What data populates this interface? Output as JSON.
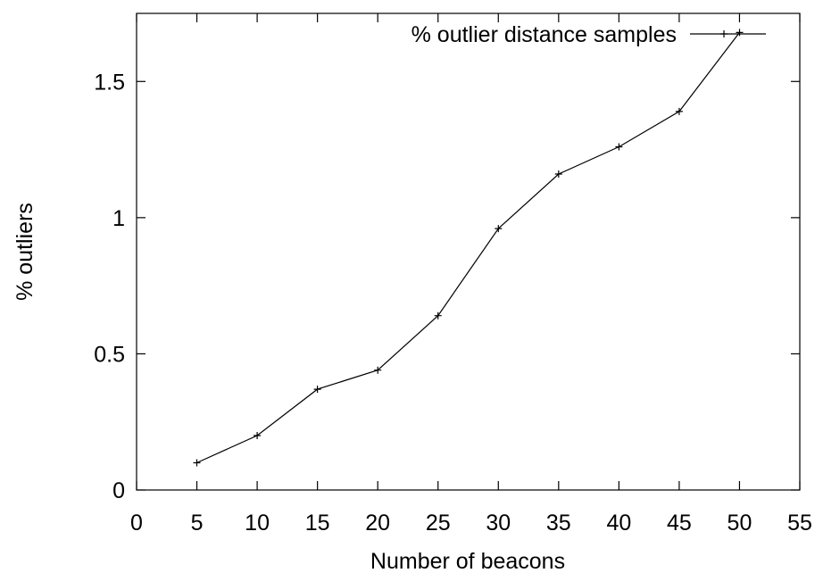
{
  "chart_data": {
    "type": "line",
    "title": "",
    "xlabel": "Number of beacons",
    "ylabel": "% outliers",
    "xlim": [
      0,
      55
    ],
    "ylim": [
      0,
      1.75
    ],
    "xticks": [
      0,
      5,
      10,
      15,
      20,
      25,
      30,
      35,
      40,
      45,
      50,
      55
    ],
    "xtick_labels": [
      "0",
      "5",
      "10",
      "15",
      "20",
      "25",
      "30",
      "35",
      "40",
      "45",
      "50",
      "55"
    ],
    "yticks": [
      0,
      0.5,
      1,
      1.5
    ],
    "ytick_labels": [
      "0",
      "0.5",
      "1",
      "1.5"
    ],
    "grid": false,
    "legend_position": "top-right",
    "series": [
      {
        "name": "% outlier distance samples",
        "marker": "plus",
        "color": "#000000",
        "x": [
          5,
          10,
          15,
          20,
          25,
          30,
          35,
          40,
          45,
          50
        ],
        "y": [
          0.1,
          0.2,
          0.37,
          0.44,
          0.64,
          0.96,
          1.16,
          1.26,
          1.39,
          1.68
        ]
      }
    ]
  }
}
